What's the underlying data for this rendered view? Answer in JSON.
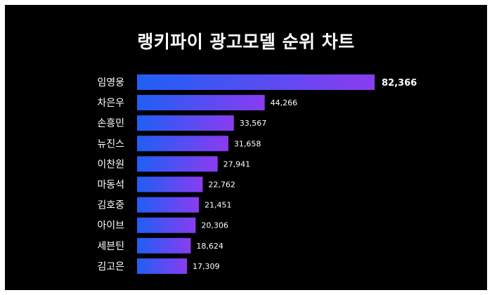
{
  "title": "랭키파이 광고모델 순위 차트",
  "colors": {
    "background": "#000000",
    "bar_gradient_start": "#1f5ff5",
    "bar_gradient_end": "#8a3cf0",
    "text": "#ffffff"
  },
  "chart_data": {
    "type": "bar",
    "orientation": "horizontal",
    "title": "랭키파이 광고모델 순위 차트",
    "categories": [
      "임영웅",
      "차은우",
      "손흥민",
      "뉴진스",
      "이찬원",
      "마동석",
      "김호중",
      "아이브",
      "세븐틴",
      "김고은"
    ],
    "values": [
      82366,
      44266,
      33567,
      31658,
      27941,
      22762,
      21451,
      20306,
      18624,
      17309
    ],
    "value_labels": [
      "82,366",
      "44,266",
      "33,567",
      "31,658",
      "27,941",
      "22,762",
      "21,451",
      "20,306",
      "18,624",
      "17,309"
    ],
    "xlim": [
      0,
      82366
    ],
    "grid": false,
    "legend": "none"
  }
}
